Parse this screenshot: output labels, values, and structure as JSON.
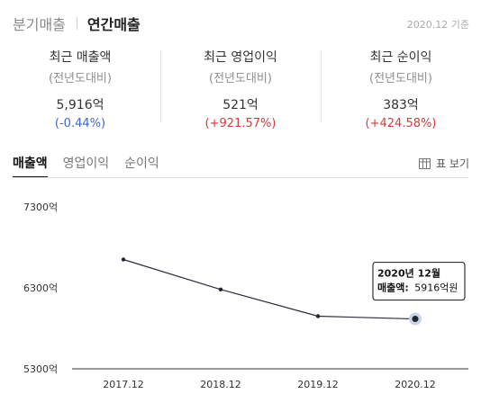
{
  "header": {
    "tabs": [
      {
        "label": "분기매출",
        "active": false
      },
      {
        "label": "연간매출",
        "active": true
      }
    ],
    "date_note": "2020.12 기준"
  },
  "summary": [
    {
      "title": "최근 매출액",
      "sub": "(전년도대비)",
      "value": "5,916억",
      "change": "(-0.44%)",
      "direction": "down"
    },
    {
      "title": "최근 영업이익",
      "sub": "(전년도대비)",
      "value": "521억",
      "change": "(+921.57%)",
      "direction": "up"
    },
    {
      "title": "최근 순이익",
      "sub": "(전년도대비)",
      "value": "383억",
      "change": "(+424.58%)",
      "direction": "up"
    }
  ],
  "chart_tabs": [
    {
      "label": "매출액",
      "active": true
    },
    {
      "label": "영업이익",
      "active": false
    },
    {
      "label": "순이익",
      "active": false
    }
  ],
  "table_view_label": "표 보기",
  "table_view_icon": "table-icon",
  "colors": {
    "down": "#3f64c4",
    "up": "#d13b3b",
    "line": "#2b2b3b"
  },
  "chart_data": {
    "type": "line",
    "categories": [
      "2017.12",
      "2018.12",
      "2019.12",
      "2020.12"
    ],
    "values": [
      6650,
      6280,
      5950,
      5916
    ],
    "y_ticks": [
      5300,
      6300,
      7300
    ],
    "y_tick_labels": [
      "5300억",
      "6300억",
      "7300억"
    ],
    "ylim": [
      5300,
      7300
    ],
    "grid": false,
    "tooltip": {
      "index": 3,
      "title": "2020년 12월",
      "label": "매출액:",
      "value": "5916억원"
    }
  }
}
